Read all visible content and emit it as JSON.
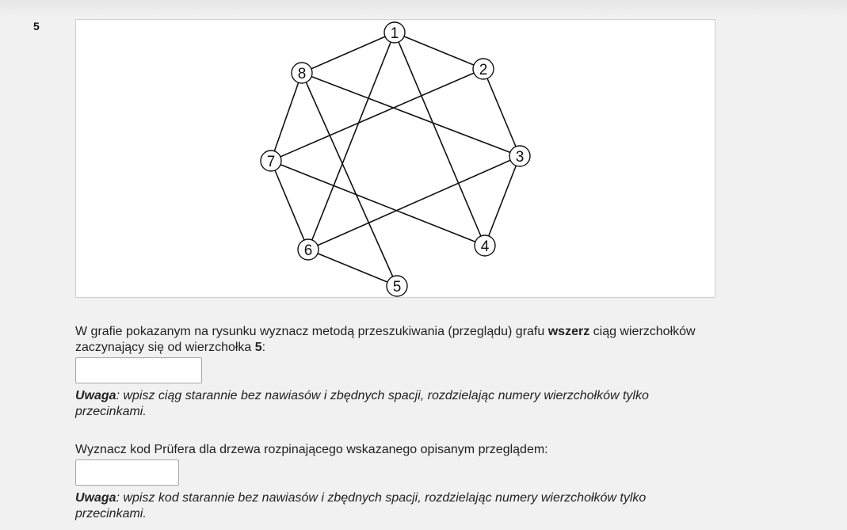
{
  "question": {
    "number": "5"
  },
  "graph": {
    "vertices": [
      {
        "id": "1",
        "label": "1"
      },
      {
        "id": "2",
        "label": "2"
      },
      {
        "id": "3",
        "label": "3"
      },
      {
        "id": "4",
        "label": "4"
      },
      {
        "id": "5",
        "label": "5"
      },
      {
        "id": "6",
        "label": "6"
      },
      {
        "id": "7",
        "label": "7"
      },
      {
        "id": "8",
        "label": "8"
      }
    ],
    "edges": [
      [
        "1",
        "2"
      ],
      [
        "1",
        "8"
      ],
      [
        "1",
        "4"
      ],
      [
        "1",
        "6"
      ],
      [
        "2",
        "3"
      ],
      [
        "2",
        "7"
      ],
      [
        "3",
        "4"
      ],
      [
        "3",
        "6"
      ],
      [
        "3",
        "8"
      ],
      [
        "4",
        "7"
      ],
      [
        "5",
        "6"
      ],
      [
        "5",
        "8"
      ],
      [
        "6",
        "7"
      ],
      [
        "7",
        "8"
      ]
    ]
  },
  "part1": {
    "text_before_bold": "W grafie pokazanym na rysunku wyznacz metodą przeszukiwania (przeglądu) grafu ",
    "bold_word": "wszerz",
    "text_after_bold": " ciąg wierzchołków zaczynający się od wierzchołka ",
    "start_vertex": "5",
    "text_end": ":",
    "answer_value": "",
    "note_label": "Uwaga",
    "note_text": ": wpisz ciąg starannie bez nawiasów i zbędnych spacji, rozdzielając numery wierzchołków tylko przecinkami."
  },
  "part2": {
    "text": "Wyznacz kod Prüfera dla drzewa rozpinającego wskazanego opisanym przeglądem:",
    "answer_value": "",
    "note_label": "Uwaga",
    "note_text": ": wpisz kod starannie bez nawiasów i zbędnych spacji, rozdzielając numery wierzchołków tylko przecinkami."
  }
}
